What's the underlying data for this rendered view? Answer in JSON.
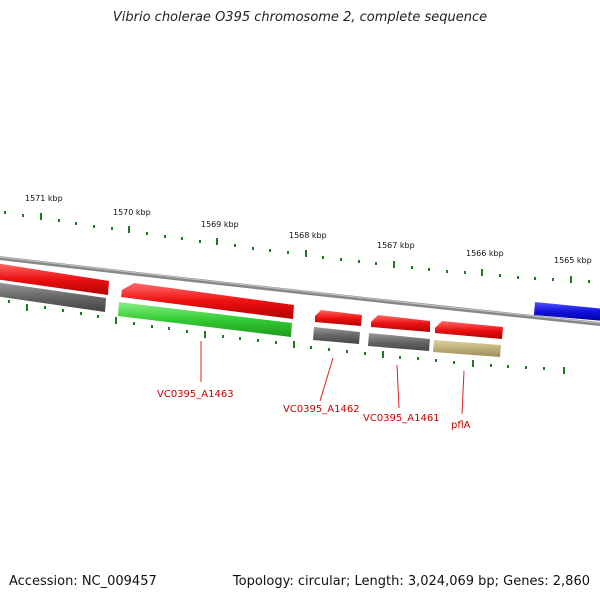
{
  "title": "Vibrio cholerae O395 chromosome 2, complete sequence",
  "footer": {
    "accession": "Accession: NC_009457",
    "summary": "Topology: circular; Length: 3,024,069 bp; Genes: 2,860"
  },
  "ticks": [
    {
      "label": "1571 kbp",
      "kbp": 1571
    },
    {
      "label": "1570 kbp",
      "kbp": 1570
    },
    {
      "label": "1569 kbp",
      "kbp": 1569
    },
    {
      "label": "1568 kbp",
      "kbp": 1568
    },
    {
      "label": "1567 kbp",
      "kbp": 1567
    },
    {
      "label": "1566 kbp",
      "kbp": 1566
    },
    {
      "label": "1565 kbp",
      "kbp": 1565
    }
  ],
  "gene_labels": [
    {
      "text": "VC0395_A1463"
    },
    {
      "text": "VC0395_A1462"
    },
    {
      "text": "VC0395_A1461"
    },
    {
      "text": "pflA"
    }
  ],
  "colors": {
    "backbone": "#8a8a8a",
    "gene_forward": "#ee1111",
    "gene_gray": "#707070",
    "gene_green": "#33cc33",
    "gene_tan": "#bfb07a",
    "gene_blue": "#1111dd",
    "tick": "#1f7a1f",
    "label": "#cc0000"
  }
}
